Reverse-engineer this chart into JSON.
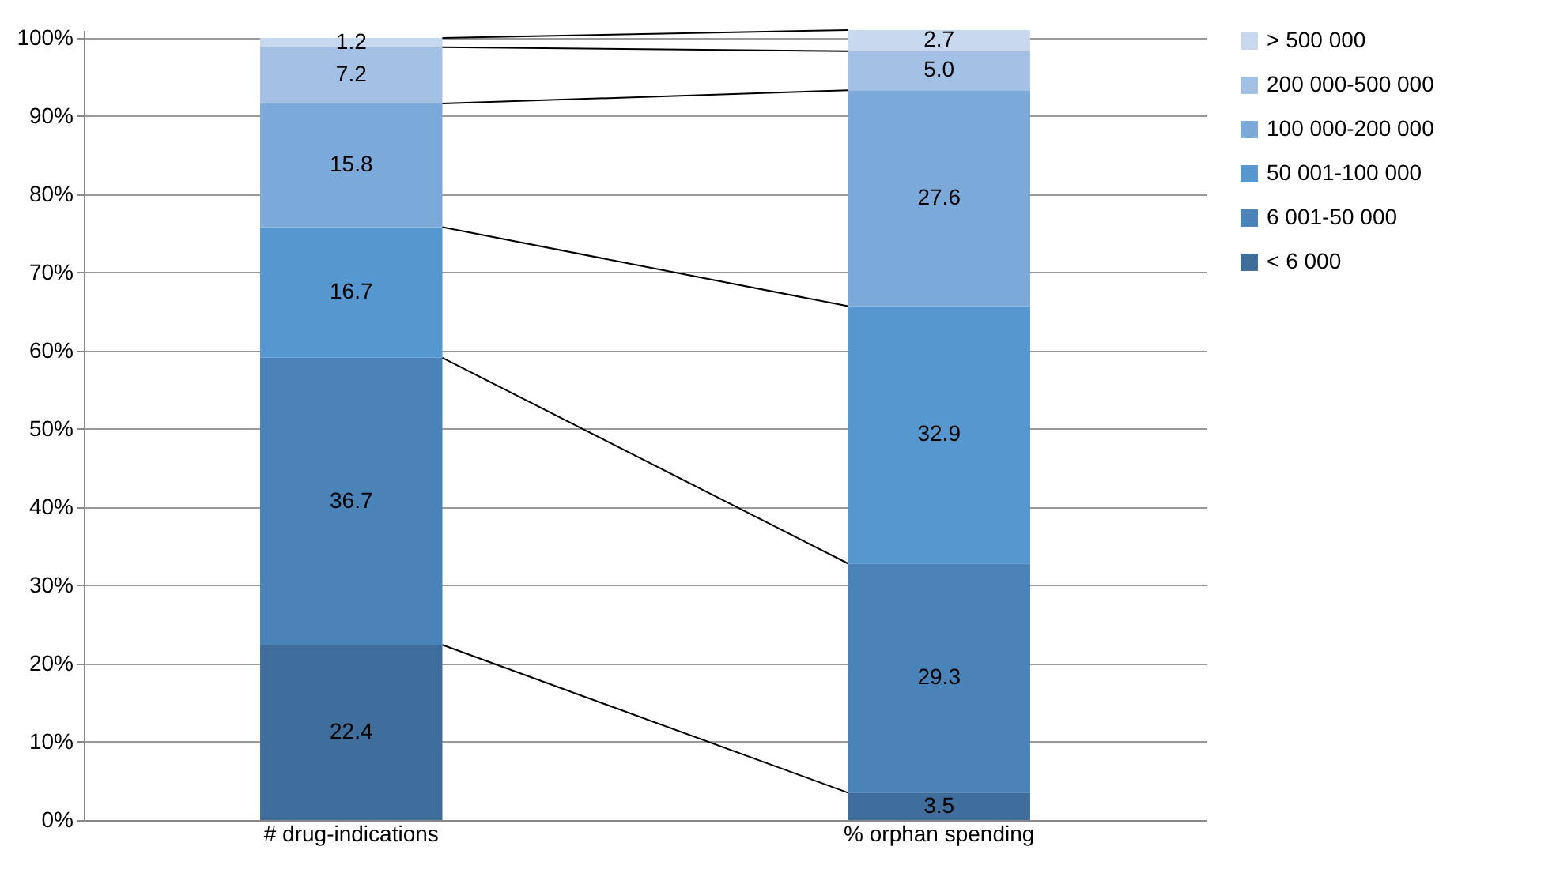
{
  "chart_data": {
    "type": "bar",
    "stacked": true,
    "categories": [
      "# drug-indications",
      "% orphan spending"
    ],
    "series": [
      {
        "name": "< 6 000",
        "color": "#3f6e9d",
        "values": [
          22.4,
          3.5
        ],
        "value_labels": [
          "22.4",
          "3.5"
        ]
      },
      {
        "name": "6 001-50 000",
        "color": "#4a83b8",
        "values": [
          36.7,
          29.3
        ],
        "value_labels": [
          "36.7",
          "29.3"
        ]
      },
      {
        "name": "50 001-100 000",
        "color": "#5697cf",
        "values": [
          16.7,
          32.9
        ],
        "value_labels": [
          "16.7",
          "32.9"
        ]
      },
      {
        "name": "100 000-200 000",
        "color": "#7ba9d9",
        "values": [
          15.8,
          27.6
        ],
        "value_labels": [
          "15.8",
          "27.6"
        ]
      },
      {
        "name": "200 000-500 000",
        "color": "#a3c1e4",
        "values": [
          7.2,
          5.0
        ],
        "value_labels": [
          "7.2",
          "5.0"
        ]
      },
      {
        "name": "> 500 000",
        "color": "#c8d8ee",
        "values": [
          1.2,
          2.7
        ],
        "value_labels": [
          "1.2",
          "2.7"
        ]
      }
    ],
    "ylim": [
      0,
      101
    ],
    "yticks": [
      {
        "value": 0,
        "label": "0%"
      },
      {
        "value": 10,
        "label": "10%"
      },
      {
        "value": 20,
        "label": "20%"
      },
      {
        "value": 30,
        "label": "30%"
      },
      {
        "value": 40,
        "label": "40%"
      },
      {
        "value": 50,
        "label": "50%"
      },
      {
        "value": 60,
        "label": "60%"
      },
      {
        "value": 70,
        "label": "70%"
      },
      {
        "value": 80,
        "label": "80%"
      },
      {
        "value": 90,
        "label": "90%"
      },
      {
        "value": 100,
        "label": "100%"
      }
    ],
    "grid": "y",
    "legend": "right"
  }
}
